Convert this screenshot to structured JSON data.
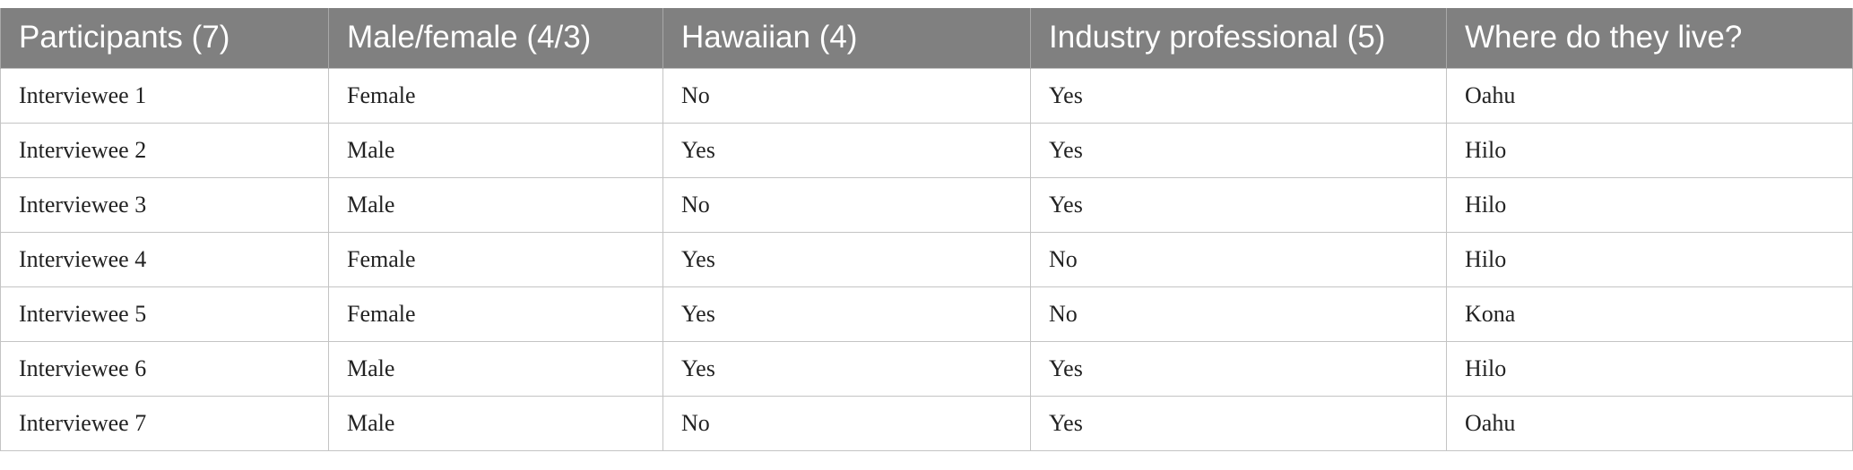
{
  "table": {
    "header": [
      "Participants (7)",
      "Male/female (4/3)",
      "Hawaiian (4)",
      "Industry professional (5)",
      "Where do they live?"
    ],
    "rows": [
      [
        "Interviewee 1",
        "Female",
        "No",
        "Yes",
        "Oahu"
      ],
      [
        "Interviewee 2",
        "Male",
        "Yes",
        "Yes",
        "Hilo"
      ],
      [
        "Interviewee 3",
        "Male",
        "No",
        "Yes",
        "Hilo"
      ],
      [
        "Interviewee 4",
        "Female",
        "Yes",
        "No",
        "Hilo"
      ],
      [
        "Interviewee 5",
        "Female",
        "Yes",
        "No",
        "Kona"
      ],
      [
        "Interviewee 6",
        "Male",
        "Yes",
        "Yes",
        "Hilo"
      ],
      [
        "Interviewee 7",
        "Male",
        "No",
        "Yes",
        "Oahu"
      ]
    ]
  }
}
